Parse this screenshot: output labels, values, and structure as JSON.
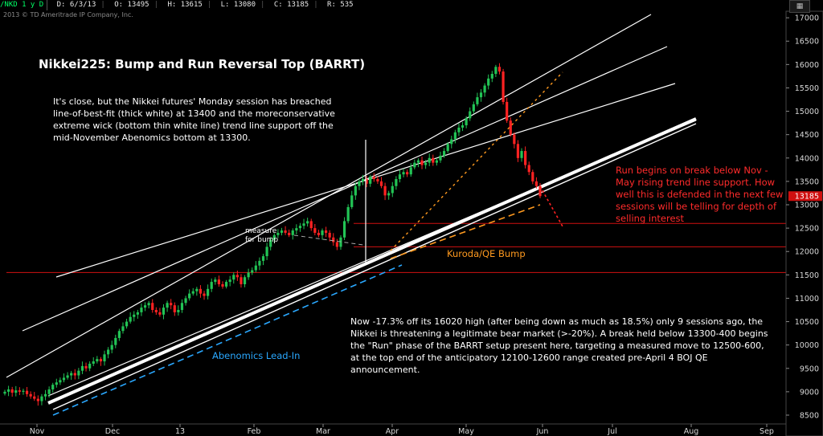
{
  "header": {
    "symbol": "/NKD 1 y D",
    "date": "D: 6/3/13",
    "open": "O: 13495",
    "high": "H: 13615",
    "low": "L: 13080",
    "close": "C: 13185",
    "range": "R: 535"
  },
  "copyright": "2013 © TD Ameritrade IP Company, Inc.",
  "annotations": {
    "title": "Nikkei225: Bump and Run Reversal Top (BARRT)",
    "left_note": "It's close, but the Nikkei futures' Monday session has breached line-of-best-fit (thick white) at 13400 and the moreconservative extreme wick (bottom thin white line) trend line support off the mid-November Abenomics bottom at 13300.",
    "red_note": "Run begins on break below Nov - May rising trend line support. How well this is defended in the next few sessions will be telling for depth of selling interest",
    "bottom_note": "Now -17.3% off its 16020 high (after being down as much as 18.5%) only 9 sessions ago, the Nikkei is threatening a legitimate bear market (>-20%). A break held below 13300-400 begins the \"Run\" phase of the BARRT setup present here, targeting a measured move to 12500-600, at the top end of the anticipatory 12100-12600 range created pre-April 4 BOJ QE announcement.",
    "abenomics_label": "Abenomics Lead-In",
    "kuroda_label": "Kuroda/QE Bump",
    "measure_label_1": "measure",
    "measure_label_2": "for bump"
  },
  "colors": {
    "background": "#000000",
    "up_candle": "#22c455",
    "down_candle": "#ff2222",
    "channel": "#ffffff",
    "abenomics": "#2aa8ff",
    "kuroda": "#ff9a1f",
    "horizontal": "#d01010",
    "last_price_bg": "#d01010"
  },
  "chart_data": {
    "type": "candlestick",
    "x_labels": [
      "Nov",
      "Dec",
      "13",
      "Feb",
      "Mar",
      "Apr",
      "May",
      "Jun",
      "Jul",
      "Aug",
      "Sep"
    ],
    "y_ticks": [
      8500,
      9000,
      9500,
      10000,
      10500,
      11000,
      11500,
      12000,
      12500,
      13000,
      13500,
      14000,
      14500,
      15000,
      15500,
      16000,
      16500,
      17000
    ],
    "ylim": [
      8300,
      17150
    ],
    "last_price": 13185,
    "last_price_label": "13185",
    "horizontal_levels": [
      12600,
      12100,
      11550
    ],
    "series_closes": [
      9000,
      9050,
      8980,
      9030,
      9000,
      9020,
      8950,
      8900,
      8850,
      8800,
      8900,
      8950,
      9050,
      9150,
      9200,
      9250,
      9300,
      9350,
      9400,
      9350,
      9450,
      9550,
      9500,
      9600,
      9650,
      9700,
      9650,
      9800,
      9900,
      10000,
      10150,
      10300,
      10400,
      10500,
      10600,
      10650,
      10700,
      10800,
      10850,
      10900,
      10750,
      10700,
      10650,
      10800,
      10900,
      10850,
      10700,
      10750,
      10900,
      11000,
      11100,
      11150,
      11200,
      11100,
      11050,
      11200,
      11350,
      11400,
      11300,
      11250,
      11350,
      11400,
      11500,
      11450,
      11300,
      11450,
      11550,
      11600,
      11700,
      11800,
      11900,
      12100,
      12250,
      12350,
      12400,
      12450,
      12400,
      12350,
      12450,
      12500,
      12550,
      12600,
      12650,
      12500,
      12400,
      12350,
      12450,
      12400,
      12300,
      12200,
      12100,
      12300,
      12650,
      12950,
      13200,
      13400,
      13500,
      13550,
      13450,
      13600,
      13550,
      13500,
      13400,
      13200,
      13250,
      13400,
      13550,
      13650,
      13700,
      13650,
      13800,
      13900,
      13950,
      13850,
      13900,
      14000,
      13900,
      13950,
      14050,
      14150,
      14300,
      14400,
      14550,
      14650,
      14700,
      14850,
      15000,
      15150,
      15300,
      15400,
      15550,
      15700,
      15800,
      15950,
      15850,
      15200,
      14800,
      14500,
      14300,
      14000,
      14150,
      13850,
      13700,
      13500,
      13400,
      13185
    ]
  }
}
